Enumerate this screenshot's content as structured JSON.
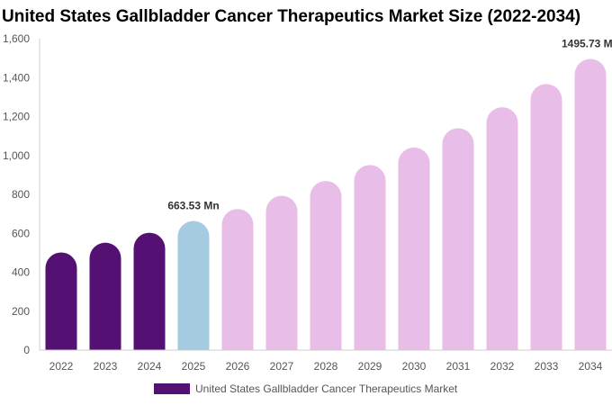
{
  "chart_data": {
    "type": "bar",
    "title": "United States Gallbladder Cancer Therapeutics Market Size (2022-2034)",
    "categories": [
      "2022",
      "2023",
      "2024",
      "2025",
      "2026",
      "2027",
      "2028",
      "2029",
      "2030",
      "2031",
      "2032",
      "2033",
      "2034"
    ],
    "series": [
      {
        "name": "United States Gallbladder Cancer Therapeutics Market",
        "values": [
          502,
          552,
          603,
          663.53,
          725,
          793,
          869,
          951,
          1041,
          1140,
          1248,
          1367,
          1495.73
        ]
      }
    ],
    "y_ticks": [
      "0",
      "200",
      "400",
      "600",
      "800",
      "1,000",
      "1,200",
      "1,400",
      "1,600"
    ],
    "ylim": [
      0,
      1600
    ],
    "data_labels": [
      {
        "category": "2025",
        "text": "663.53 Mn"
      },
      {
        "category": "2034",
        "text": "1495.73 Mn"
      }
    ],
    "colors": {
      "historical": "#541173",
      "base_year": "#a5cbe0",
      "forecast": "#e8bde8",
      "axis": "#cccccc"
    },
    "legend_position": "bottom",
    "grid": false
  }
}
